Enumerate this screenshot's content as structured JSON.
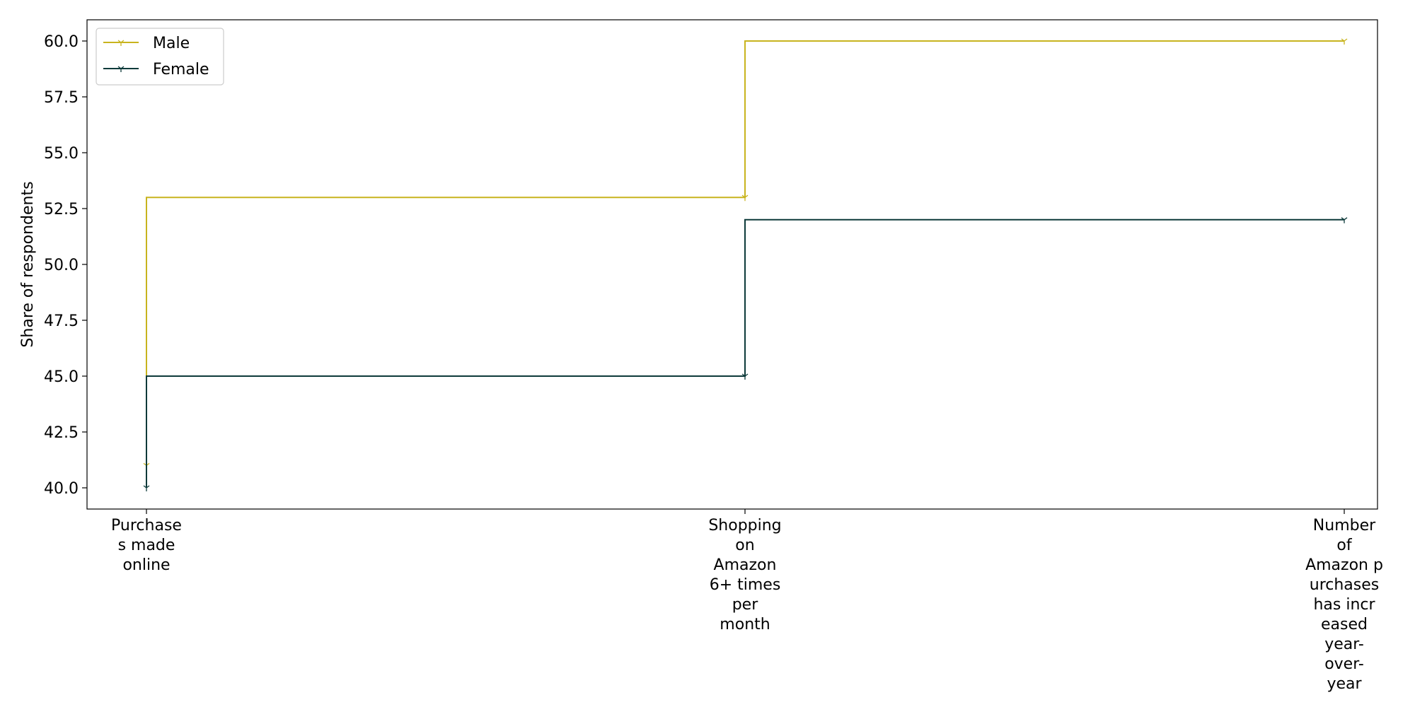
{
  "chart_data": {
    "type": "line",
    "step": "pre",
    "categories": [
      [
        "Purchase",
        "s made",
        "online"
      ],
      [
        "Shopping",
        "on",
        "Amazon",
        "6+ times",
        "per",
        "month"
      ],
      [
        "Number",
        "of",
        "Amazon p",
        "urchases",
        "has incr",
        "eased",
        "year-",
        "over-",
        "year"
      ]
    ],
    "series": [
      {
        "name": "Male",
        "values": [
          41,
          53,
          60
        ],
        "color": "#c8b41e"
      },
      {
        "name": "Female",
        "values": [
          40,
          45,
          52
        ],
        "color": "#0d3a3a"
      }
    ],
    "ylabel": "Share of respondents",
    "xlabel": "",
    "ylim": [
      39,
      61
    ],
    "yticks": [
      "40.0",
      "42.5",
      "45.0",
      "47.5",
      "50.0",
      "52.5",
      "55.0",
      "57.5",
      "60.0"
    ],
    "legend_position": "top-left",
    "grid": false
  }
}
